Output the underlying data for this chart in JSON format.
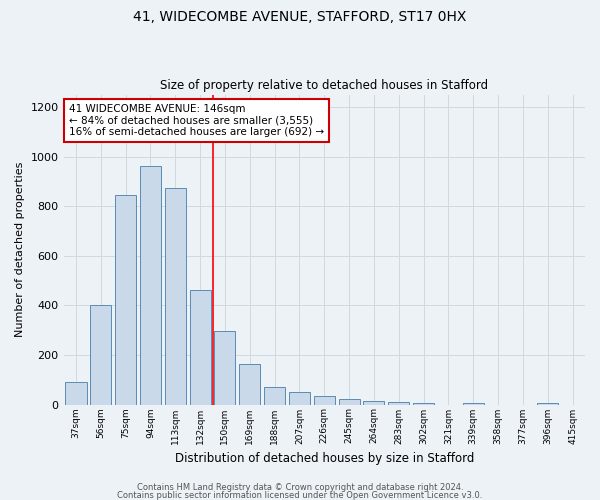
{
  "title1": "41, WIDECOMBE AVENUE, STAFFORD, ST17 0HX",
  "title2": "Size of property relative to detached houses in Stafford",
  "xlabel": "Distribution of detached houses by size in Stafford",
  "ylabel": "Number of detached properties",
  "categories": [
    "37sqm",
    "56sqm",
    "75sqm",
    "94sqm",
    "113sqm",
    "132sqm",
    "150sqm",
    "169sqm",
    "188sqm",
    "207sqm",
    "226sqm",
    "245sqm",
    "264sqm",
    "283sqm",
    "302sqm",
    "321sqm",
    "339sqm",
    "358sqm",
    "377sqm",
    "396sqm",
    "415sqm"
  ],
  "values": [
    90,
    400,
    845,
    960,
    875,
    460,
    295,
    162,
    70,
    50,
    33,
    22,
    15,
    10,
    8,
    0,
    8,
    0,
    0,
    8,
    0
  ],
  "bar_color": "#c9d9ea",
  "bar_edge_color": "#5a8db5",
  "grid_color": "#d0d8e0",
  "bg_color": "#edf2f7",
  "red_line_x": 5.5,
  "annotation_text": "41 WIDECOMBE AVENUE: 146sqm\n← 84% of detached houses are smaller (3,555)\n16% of semi-detached houses are larger (692) →",
  "annotation_box_color": "#ffffff",
  "annotation_box_edge": "#cc0000",
  "footer1": "Contains HM Land Registry data © Crown copyright and database right 2024.",
  "footer2": "Contains public sector information licensed under the Open Government Licence v3.0.",
  "ylim": [
    0,
    1250
  ],
  "yticks": [
    0,
    200,
    400,
    600,
    800,
    1000,
    1200
  ]
}
